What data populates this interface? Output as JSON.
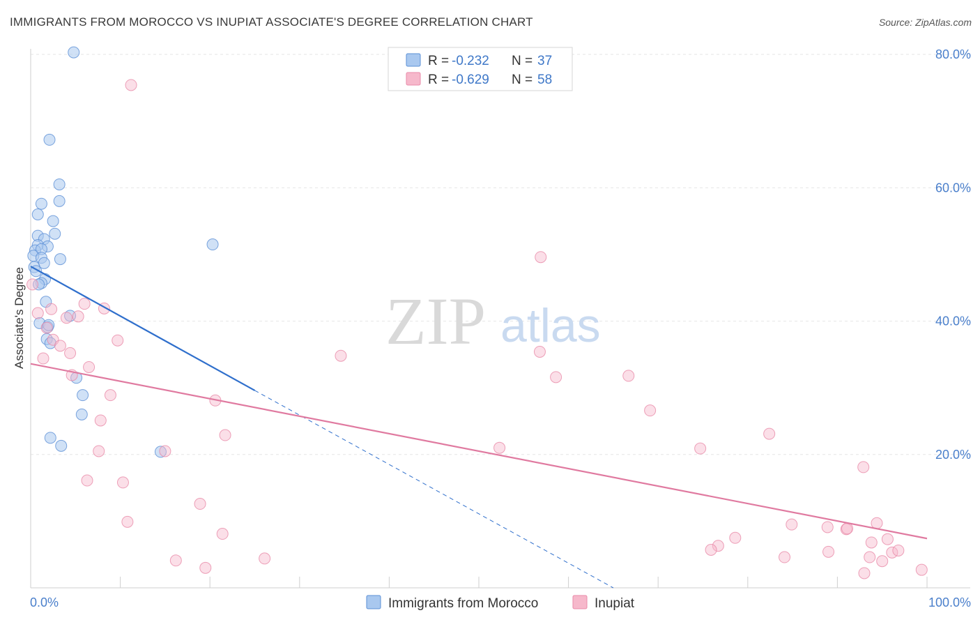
{
  "header": {
    "title": "IMMIGRANTS FROM MOROCCO VS INUPIAT ASSOCIATE'S DEGREE CORRELATION CHART",
    "source": "Source: ZipAtlas.com"
  },
  "watermark": {
    "zip": "ZIP",
    "atlas": "atlas"
  },
  "legend": {
    "rows": [
      {
        "r_label": "R =",
        "r_value": "-0.232",
        "n_label": "N =",
        "n_value": "37",
        "color": "#a9c8ef"
      },
      {
        "r_label": "R =",
        "r_value": "-0.629",
        "n_label": "N =",
        "n_value": "58",
        "color": "#f6b8cb"
      }
    ]
  },
  "bottom_legend": [
    {
      "label": "Immigrants from Morocco",
      "color": "#a9c8ef"
    },
    {
      "label": "Inupiat",
      "color": "#f6b8cb"
    }
  ],
  "chart_data": {
    "type": "scatter",
    "title": "IMMIGRANTS FROM MOROCCO VS INUPIAT ASSOCIATE'S DEGREE CORRELATION CHART",
    "xlabel": "",
    "ylabel": "Associate's Degree",
    "xlim": [
      0,
      100
    ],
    "ylim": [
      0,
      80
    ],
    "x_tick_labels": [
      "0.0%",
      "100.0%"
    ],
    "y_ticks": [
      20,
      40,
      60,
      80
    ],
    "y_tick_labels": [
      "20.0%",
      "40.0%",
      "60.0%",
      "80.0%"
    ],
    "grid": true,
    "series": [
      {
        "name": "Immigrants from Morocco",
        "color": "#a9c8ef",
        "stroke": "#5b8fd6",
        "line_color": "#2f6fcc",
        "trend": {
          "x1": 0,
          "y1": 48.2,
          "x2": 25,
          "y2": 29.6,
          "dash_to_x": 65,
          "dash_to_y": 0
        },
        "points": [
          [
            4.8,
            80.3
          ],
          [
            2.1,
            67.2
          ],
          [
            3.2,
            60.5
          ],
          [
            3.2,
            58.0
          ],
          [
            1.2,
            57.6
          ],
          [
            0.8,
            56.0
          ],
          [
            2.5,
            55.0
          ],
          [
            2.7,
            53.1
          ],
          [
            0.8,
            52.8
          ],
          [
            1.5,
            52.3
          ],
          [
            0.8,
            51.4
          ],
          [
            1.9,
            51.2
          ],
          [
            0.5,
            50.6
          ],
          [
            1.2,
            50.8
          ],
          [
            0.3,
            49.8
          ],
          [
            1.2,
            49.5
          ],
          [
            3.3,
            49.3
          ],
          [
            1.5,
            48.7
          ],
          [
            0.4,
            48.1
          ],
          [
            20.3,
            51.5
          ],
          [
            1.6,
            46.3
          ],
          [
            1.2,
            45.7
          ],
          [
            1.7,
            42.9
          ],
          [
            4.4,
            40.8
          ],
          [
            1.0,
            39.7
          ],
          [
            1.9,
            39.1
          ],
          [
            1.8,
            37.3
          ],
          [
            2.2,
            36.7
          ],
          [
            5.1,
            31.5
          ],
          [
            5.8,
            28.9
          ],
          [
            5.7,
            26.0
          ],
          [
            2.2,
            22.5
          ],
          [
            3.4,
            21.3
          ],
          [
            14.5,
            20.4
          ],
          [
            0.9,
            45.5
          ],
          [
            2.0,
            39.4
          ],
          [
            0.6,
            47.5
          ]
        ]
      },
      {
        "name": "Inupiat",
        "color": "#f6b8cb",
        "stroke": "#e98aa8",
        "line_color": "#e07aa0",
        "trend": {
          "x1": 0,
          "y1": 33.6,
          "x2": 100,
          "y2": 7.4
        },
        "points": [
          [
            11.2,
            75.4
          ],
          [
            0.2,
            45.5
          ],
          [
            56.9,
            49.6
          ],
          [
            6.0,
            42.6
          ],
          [
            8.2,
            41.9
          ],
          [
            0.8,
            41.2
          ],
          [
            2.3,
            41.8
          ],
          [
            5.3,
            40.7
          ],
          [
            4.0,
            40.5
          ],
          [
            1.8,
            39.0
          ],
          [
            2.5,
            37.2
          ],
          [
            9.7,
            37.1
          ],
          [
            3.3,
            36.3
          ],
          [
            4.4,
            35.2
          ],
          [
            1.4,
            34.4
          ],
          [
            34.6,
            34.8
          ],
          [
            56.8,
            35.4
          ],
          [
            6.5,
            33.1
          ],
          [
            4.6,
            31.9
          ],
          [
            58.6,
            31.6
          ],
          [
            66.7,
            31.8
          ],
          [
            8.9,
            28.9
          ],
          [
            20.6,
            28.1
          ],
          [
            69.1,
            26.6
          ],
          [
            7.8,
            25.1
          ],
          [
            21.7,
            22.9
          ],
          [
            82.4,
            23.1
          ],
          [
            15.0,
            20.5
          ],
          [
            7.6,
            20.5
          ],
          [
            52.3,
            21.0
          ],
          [
            74.7,
            20.9
          ],
          [
            92.9,
            18.1
          ],
          [
            6.3,
            16.1
          ],
          [
            10.3,
            15.8
          ],
          [
            18.9,
            12.6
          ],
          [
            10.8,
            9.9
          ],
          [
            21.4,
            8.1
          ],
          [
            84.9,
            9.5
          ],
          [
            88.9,
            9.1
          ],
          [
            91.0,
            8.8
          ],
          [
            94.4,
            9.7
          ],
          [
            91.1,
            8.9
          ],
          [
            78.6,
            7.5
          ],
          [
            95.6,
            7.3
          ],
          [
            93.8,
            6.8
          ],
          [
            76.7,
            6.3
          ],
          [
            75.9,
            5.7
          ],
          [
            84.1,
            4.6
          ],
          [
            89.0,
            5.4
          ],
          [
            93.6,
            4.6
          ],
          [
            96.1,
            5.3
          ],
          [
            96.8,
            5.6
          ],
          [
            95.0,
            4.0
          ],
          [
            16.2,
            4.1
          ],
          [
            26.1,
            4.4
          ],
          [
            19.5,
            3.0
          ],
          [
            93.0,
            2.2
          ],
          [
            99.4,
            2.7
          ]
        ]
      }
    ]
  }
}
